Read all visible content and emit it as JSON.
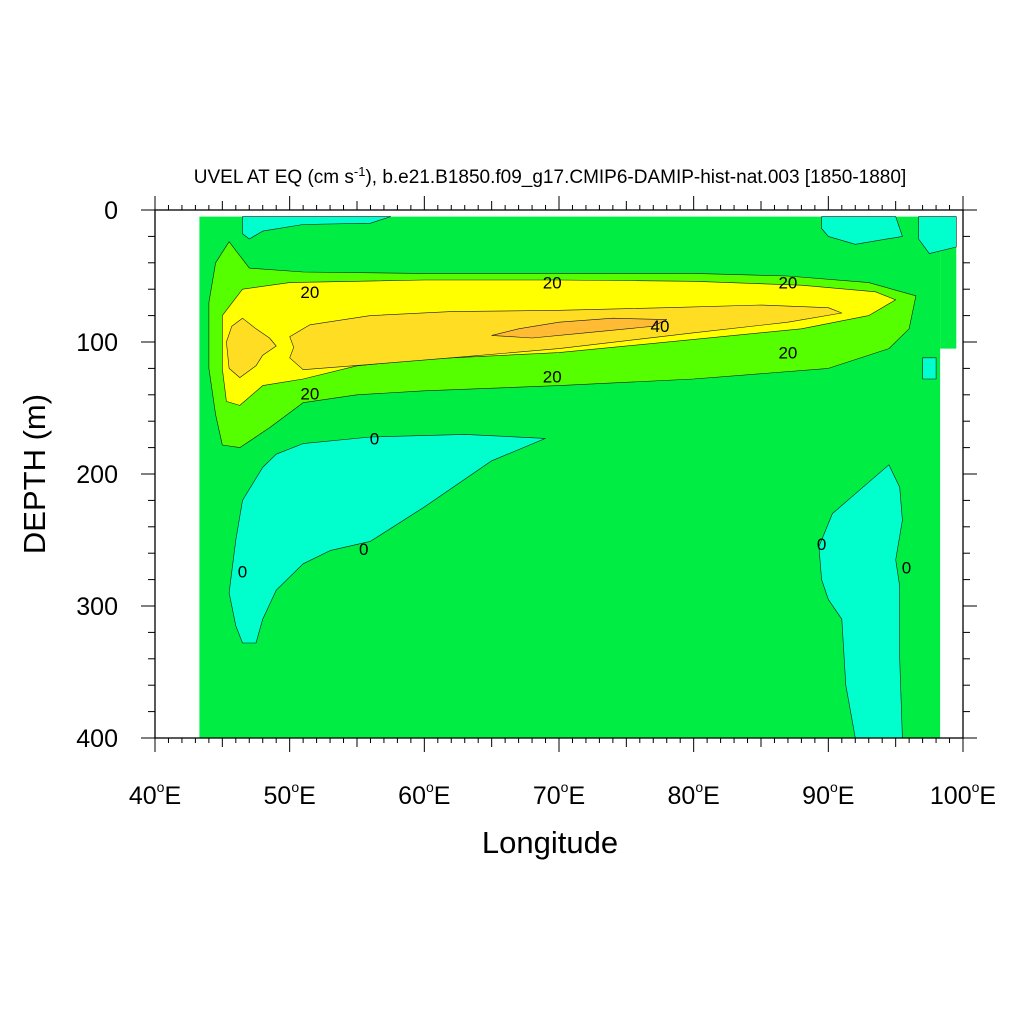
{
  "chart_data": {
    "type": "contour",
    "title_main": "UVEL AT EQ (cm s",
    "title_sup": "-1",
    "title_rest": "), b.e21.B1850.f09_g17.CMIP6-DAMIP-hist-nat.003 [1850-1880]",
    "xlabel": "Longitude",
    "ylabel": "DEPTH (m)",
    "xlim": [
      40,
      100
    ],
    "ylim": [
      400,
      0
    ],
    "x_ticks": [
      {
        "value": 40,
        "num": "40",
        "deg": "o",
        "suffix": "E"
      },
      {
        "value": 50,
        "num": "50",
        "deg": "o",
        "suffix": "E"
      },
      {
        "value": 60,
        "num": "60",
        "deg": "o",
        "suffix": "E"
      },
      {
        "value": 70,
        "num": "70",
        "deg": "o",
        "suffix": "E"
      },
      {
        "value": 80,
        "num": "80",
        "deg": "o",
        "suffix": "E"
      },
      {
        "value": 90,
        "num": "90",
        "deg": "o",
        "suffix": "E"
      },
      {
        "value": 100,
        "num": "100",
        "deg": "o",
        "suffix": "E"
      }
    ],
    "y_ticks": [
      {
        "value": 0,
        "label": "0"
      },
      {
        "value": 100,
        "label": "100"
      },
      {
        "value": 200,
        "label": "200"
      },
      {
        "value": 300,
        "label": "300"
      },
      {
        "value": 400,
        "label": "400"
      }
    ],
    "data_extent_lon": [
      43.3,
      98.3
    ],
    "colors": {
      "below_0": "#00ffcc",
      "0_to_10": "#00ee44",
      "10_to_20": "#55ff00",
      "20_to_30": "#ffff00",
      "30_to_40": "#ffdd22",
      "above_40": "#ffbb33"
    },
    "contour_labels": [
      {
        "text": "20",
        "lon": 51.5,
        "depth": 62
      },
      {
        "text": "20",
        "lon": 69.5,
        "depth": 55
      },
      {
        "text": "20",
        "lon": 87.0,
        "depth": 55
      },
      {
        "text": "40",
        "lon": 77.5,
        "depth": 88
      },
      {
        "text": "20",
        "lon": 87.0,
        "depth": 108
      },
      {
        "text": "20",
        "lon": 69.5,
        "depth": 126
      },
      {
        "text": "20",
        "lon": 51.5,
        "depth": 139
      },
      {
        "text": "0",
        "lon": 56.3,
        "depth": 173
      },
      {
        "text": "0",
        "lon": 55.5,
        "depth": 257
      },
      {
        "text": "0",
        "lon": 46.5,
        "depth": 274
      },
      {
        "text": "0",
        "lon": 89.5,
        "depth": 253
      },
      {
        "text": "0",
        "lon": 95.8,
        "depth": 271
      }
    ],
    "regions": [
      {
        "level": "0_to_10",
        "points": [
          [
            43.3,
            5
          ],
          [
            98.3,
            5
          ],
          [
            98.3,
            400
          ],
          [
            43.3,
            400
          ]
        ]
      },
      {
        "level": "0_to_10",
        "points": [
          [
            98.3,
            5
          ],
          [
            99.5,
            5
          ],
          [
            99.5,
            105
          ],
          [
            98.3,
            105
          ]
        ]
      },
      {
        "level": "below_0",
        "points": [
          [
            46.5,
            5
          ],
          [
            57.5,
            5
          ],
          [
            56,
            10
          ],
          [
            51,
            11
          ],
          [
            48,
            16
          ],
          [
            47,
            22
          ],
          [
            46.5,
            18
          ]
        ]
      },
      {
        "level": "below_0",
        "points": [
          [
            89.5,
            5
          ],
          [
            95,
            5
          ],
          [
            95.5,
            20
          ],
          [
            92,
            26
          ],
          [
            90,
            20
          ],
          [
            89.5,
            14
          ]
        ]
      },
      {
        "level": "below_0",
        "points": [
          [
            96.7,
            5
          ],
          [
            99.5,
            5
          ],
          [
            99.5,
            28
          ],
          [
            97.5,
            33
          ],
          [
            96.7,
            22
          ]
        ]
      },
      {
        "level": "below_0",
        "points": [
          [
            97.0,
            112
          ],
          [
            98.0,
            112
          ],
          [
            98.0,
            128
          ],
          [
            97.0,
            128
          ]
        ]
      },
      {
        "level": "below_0",
        "points": [
          [
            51,
            177
          ],
          [
            56,
            172
          ],
          [
            63,
            170
          ],
          [
            69,
            173
          ],
          [
            65,
            190
          ],
          [
            60,
            225
          ],
          [
            56,
            251
          ],
          [
            53,
            258
          ],
          [
            51,
            268
          ],
          [
            49,
            288
          ],
          [
            48,
            310
          ],
          [
            47.5,
            328
          ],
          [
            46.5,
            328
          ],
          [
            46,
            315
          ],
          [
            45.5,
            290
          ],
          [
            46,
            250
          ],
          [
            46.5,
            220
          ],
          [
            48,
            195
          ],
          [
            49,
            185
          ]
        ]
      },
      {
        "level": "below_0",
        "points": [
          [
            94.5,
            193
          ],
          [
            95.3,
            210
          ],
          [
            95.5,
            235
          ],
          [
            95,
            265
          ],
          [
            95.3,
            285
          ],
          [
            95.3,
            340
          ],
          [
            95.5,
            400
          ],
          [
            92.0,
            400
          ],
          [
            91.3,
            360
          ],
          [
            91,
            310
          ],
          [
            90,
            295
          ],
          [
            89.5,
            280
          ],
          [
            89.3,
            255
          ],
          [
            90.3,
            230
          ],
          [
            92,
            215
          ]
        ]
      },
      {
        "level": "10_to_20",
        "points": [
          [
            45.5,
            24
          ],
          [
            47.0,
            44
          ],
          [
            51,
            47
          ],
          [
            60,
            48
          ],
          [
            70,
            48
          ],
          [
            80,
            48
          ],
          [
            87,
            50
          ],
          [
            93,
            55
          ],
          [
            96.5,
            65
          ],
          [
            96,
            90
          ],
          [
            94.5,
            105
          ],
          [
            90,
            120
          ],
          [
            80,
            128
          ],
          [
            70,
            133
          ],
          [
            60,
            137
          ],
          [
            55,
            140
          ],
          [
            51,
            146
          ],
          [
            48.5,
            165
          ],
          [
            46.3,
            180
          ],
          [
            45.0,
            178
          ],
          [
            44.5,
            155
          ],
          [
            44.0,
            120
          ],
          [
            44.0,
            70
          ],
          [
            44.5,
            40
          ]
        ]
      },
      {
        "level": "20_to_30",
        "points": [
          [
            46.5,
            60
          ],
          [
            50,
            55
          ],
          [
            60,
            53
          ],
          [
            70,
            53
          ],
          [
            80,
            54
          ],
          [
            88,
            57
          ],
          [
            93.5,
            62
          ],
          [
            95,
            68
          ],
          [
            93,
            80
          ],
          [
            88,
            90
          ],
          [
            80,
            98
          ],
          [
            70,
            108
          ],
          [
            60,
            113
          ],
          [
            55,
            118
          ],
          [
            51,
            128
          ],
          [
            48,
            133
          ],
          [
            46.3,
            148
          ],
          [
            45.3,
            145
          ],
          [
            45.0,
            120
          ],
          [
            45.0,
            80
          ]
        ]
      },
      {
        "level": "30_to_40",
        "points": [
          [
            46.5,
            82
          ],
          [
            47.5,
            90
          ],
          [
            48.5,
            97
          ],
          [
            49,
            103
          ],
          [
            48,
            110
          ],
          [
            47.5,
            118
          ],
          [
            46.3,
            127
          ],
          [
            45.5,
            120
          ],
          [
            45.3,
            100
          ],
          [
            45.7,
            88
          ]
        ]
      },
      {
        "level": "30_to_40",
        "points": [
          [
            50,
            96
          ],
          [
            51.5,
            87
          ],
          [
            56,
            80
          ],
          [
            62,
            77
          ],
          [
            70,
            76
          ],
          [
            78,
            74
          ],
          [
            85,
            72
          ],
          [
            90,
            74
          ],
          [
            91,
            78
          ],
          [
            87,
            85
          ],
          [
            80,
            93
          ],
          [
            70,
            105
          ],
          [
            62,
            112
          ],
          [
            56,
            117
          ],
          [
            51,
            121
          ],
          [
            50,
            112
          ],
          [
            50.3,
            104
          ]
        ]
      },
      {
        "level": "above_40",
        "points": [
          [
            65,
            95
          ],
          [
            67,
            90
          ],
          [
            70,
            85
          ],
          [
            74,
            82
          ],
          [
            78,
            83
          ],
          [
            77,
            88
          ],
          [
            72,
            93
          ],
          [
            68,
            97
          ]
        ]
      }
    ]
  }
}
